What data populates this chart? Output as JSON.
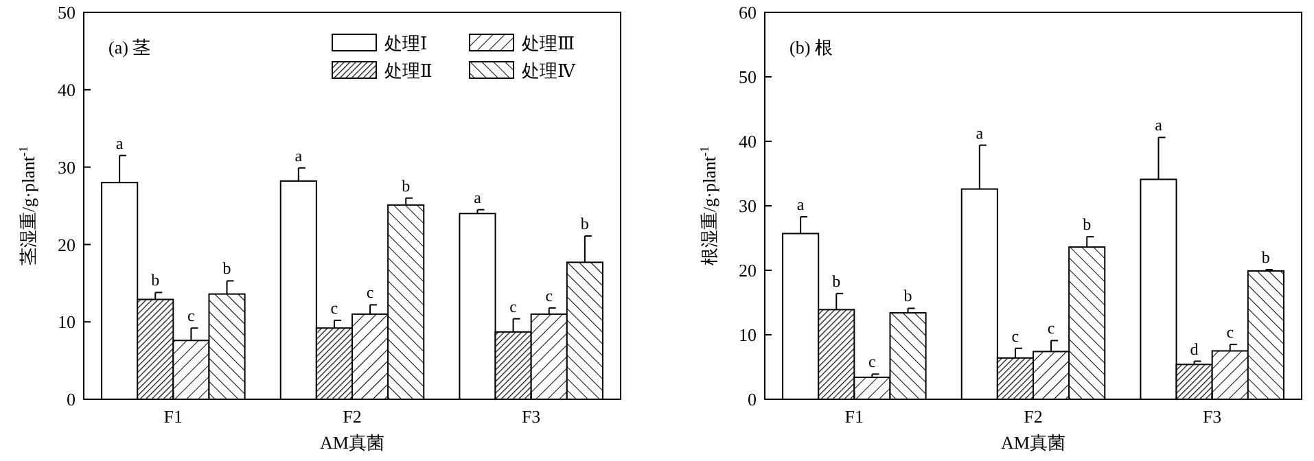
{
  "chart_data": [
    {
      "type": "bar",
      "title": "(a) 茎",
      "xlabel": "AM真菌",
      "ylabel": "茎湿重/g·plant$^{-1}$",
      "categories": [
        "F1",
        "F2",
        "F3"
      ],
      "ylim": [
        0,
        50
      ],
      "yticks": [
        0,
        10,
        20,
        30,
        40,
        50
      ],
      "legend": "top right",
      "series": [
        {
          "name": "处理Ⅰ",
          "color": "#ffffff",
          "values": [
            28,
            28.2,
            24
          ],
          "errors": [
            3.5,
            1.7,
            0.5
          ]
        },
        {
          "name": "处理Ⅱ",
          "color": "#000000",
          "values": [
            12.9,
            9.2,
            8.7
          ],
          "errors": [
            0.9,
            1,
            1.7
          ]
        },
        {
          "name": "处理Ⅲ",
          "color": "#000000",
          "values": [
            7.6,
            11,
            11
          ],
          "errors": [
            1.6,
            1.2,
            0.8
          ]
        },
        {
          "name": "处理Ⅳ",
          "color": "#000000",
          "values": [
            13.6,
            25.1,
            17.7
          ],
          "errors": [
            1.7,
            0.9,
            3.4
          ]
        }
      ],
      "annotations": [
        "a",
        "b",
        "c",
        "b",
        "a",
        "c",
        "c",
        "b",
        "a",
        "c",
        "c",
        "b"
      ]
    },
    {
      "type": "bar",
      "title": "(b) 根",
      "xlabel": "AM真菌",
      "ylabel": "根湿重/g·plant$^{-1}$",
      "categories": [
        "F1",
        "F2",
        "F3"
      ],
      "ylim": [
        0,
        60
      ],
      "yticks": [
        0,
        10,
        20,
        30,
        40,
        50,
        60
      ],
      "series": [
        {
          "color": "#ffffff",
          "values": [
            25.7,
            32.6,
            34.1
          ],
          "errors": [
            2.6,
            6.8,
            6.5
          ]
        },
        {
          "color": "#000000",
          "values": [
            13.9,
            6.4,
            5.4
          ],
          "errors": [
            2.5,
            1.5,
            0.5
          ]
        },
        {
          "color": "#000000",
          "values": [
            3.4,
            7.4,
            7.5
          ],
          "errors": [
            0.5,
            1.7,
            1
          ]
        },
        {
          "color": "#000000",
          "values": [
            13.4,
            23.6,
            19.9
          ],
          "errors": [
            0.7,
            1.6,
            0.2
          ]
        }
      ],
      "annotations": [
        "a",
        "b",
        "c",
        "b",
        "a",
        "c",
        "c",
        "b",
        "a",
        "d",
        "c",
        "b"
      ]
    }
  ]
}
